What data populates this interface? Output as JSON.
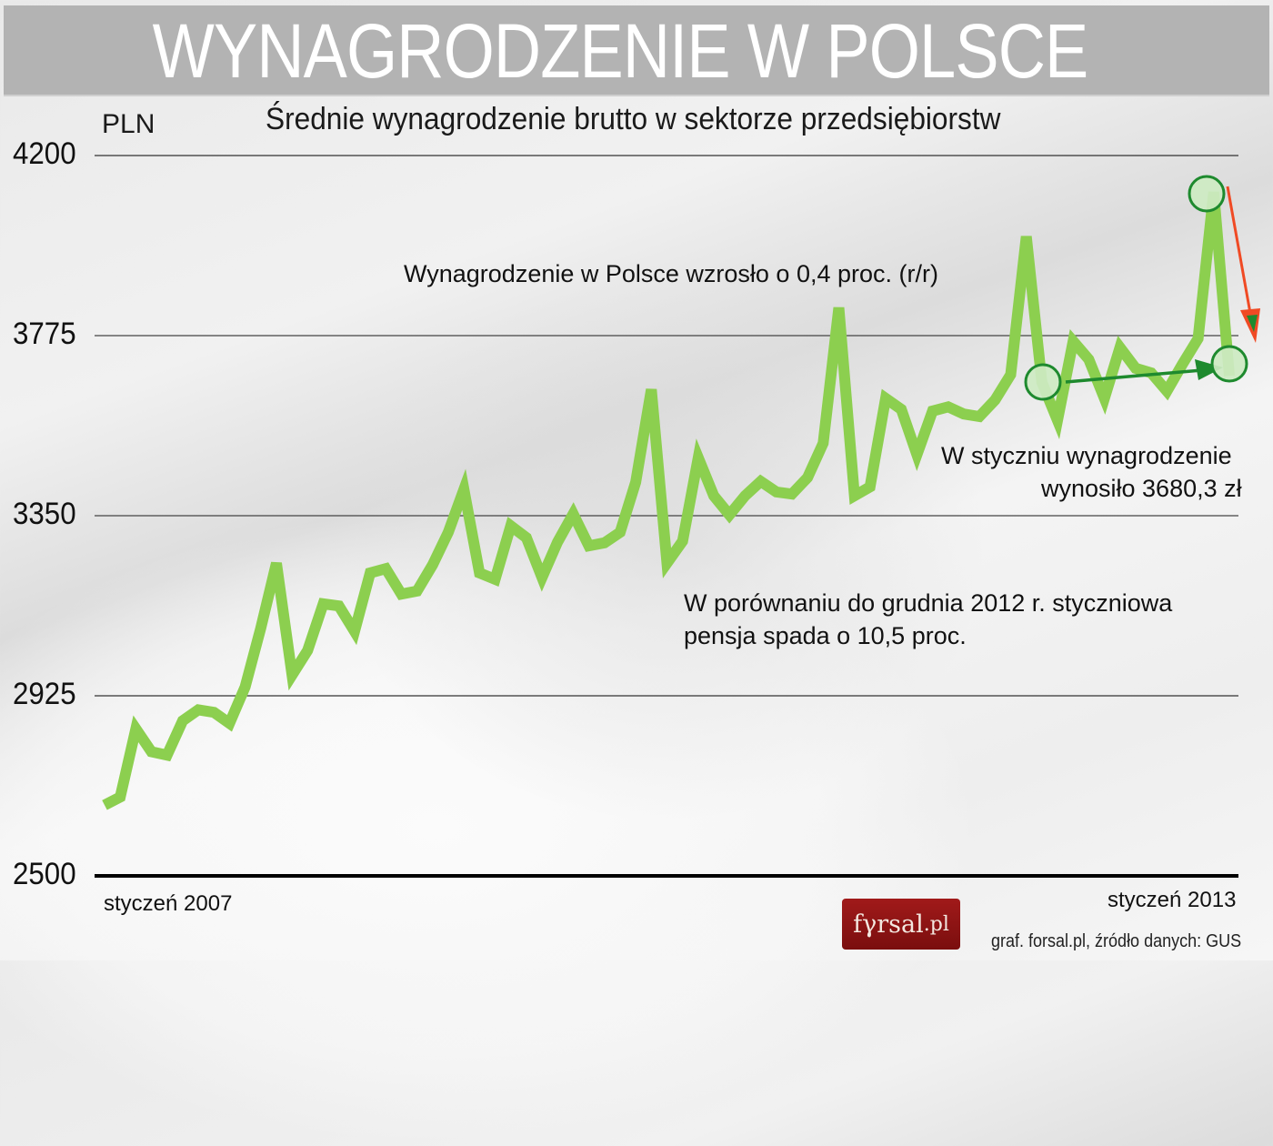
{
  "header": {
    "title": "WYNAGRODZENIE W POLSCE",
    "subtitle": "Średnie wynagrodzenie brutto w sektorze przedsiębiorstw",
    "unit": "PLN"
  },
  "axis": {
    "y_ticks": [
      "4200",
      "3775",
      "3350",
      "2925",
      "2500"
    ],
    "x_start_label": "styczeń 2007",
    "x_end_label": "styczeń 2013"
  },
  "annotations": {
    "growth": "Wynagrodzenie w Polsce wzrosło o 0,4 proc. (r/r)",
    "january_line1": "W styczniu wynagrodzenie",
    "january_line2": "wynosiło 3680,3 zł",
    "compare_line1": "W porównaniu do grudnia 2012 r. styczniowa",
    "compare_line2": "pensja spada o 10,5 proc."
  },
  "footer": {
    "logo_main": "fγrsal",
    "logo_suffix": ".pl",
    "source": "graf. forsal.pl, źródło danych: GUS"
  },
  "colors": {
    "line": "#8ccf4f",
    "marker_fill": "#cdeac2",
    "marker_stroke": "#1e8a2e",
    "arrow_green": "#1e8a2e",
    "arrow_red": "#f04a24",
    "title_bar": "#b3b3b3",
    "logo_bg": "#8f1414"
  },
  "chart_data": {
    "type": "line",
    "title": "Średnie wynagrodzenie brutto w sektorze przedsiębiorstw",
    "ylabel": "PLN",
    "xlabel": "",
    "ylim": [
      2500,
      4200
    ],
    "y_ticks": [
      2500,
      2925,
      3350,
      3775,
      4200
    ],
    "grid": "horizontal",
    "x_range": [
      "styczeń 2007",
      "styczeń 2013"
    ],
    "x": [
      "2007-01",
      "2007-02",
      "2007-03",
      "2007-04",
      "2007-05",
      "2007-06",
      "2007-07",
      "2007-08",
      "2007-09",
      "2007-10",
      "2007-11",
      "2007-12",
      "2008-01",
      "2008-02",
      "2008-03",
      "2008-04",
      "2008-05",
      "2008-06",
      "2008-07",
      "2008-08",
      "2008-09",
      "2008-10",
      "2008-11",
      "2008-12",
      "2009-01",
      "2009-02",
      "2009-03",
      "2009-04",
      "2009-05",
      "2009-06",
      "2009-07",
      "2009-08",
      "2009-09",
      "2009-10",
      "2009-11",
      "2009-12",
      "2010-01",
      "2010-02",
      "2010-03",
      "2010-04",
      "2010-05",
      "2010-06",
      "2010-07",
      "2010-08",
      "2010-09",
      "2010-10",
      "2010-11",
      "2010-12",
      "2011-01",
      "2011-02",
      "2011-03",
      "2011-04",
      "2011-05",
      "2011-06",
      "2011-07",
      "2011-08",
      "2011-09",
      "2011-10",
      "2011-11",
      "2011-12",
      "2012-01",
      "2012-02",
      "2012-03",
      "2012-04",
      "2012-05",
      "2012-06",
      "2012-07",
      "2012-08",
      "2012-09",
      "2012-10",
      "2012-11",
      "2012-12",
      "2013-01"
    ],
    "series": [
      {
        "name": "Średnie wynagrodzenie brutto",
        "values": [
          2667,
          2686,
          2847,
          2793,
          2785,
          2866,
          2892,
          2886,
          2860,
          2946,
          3085,
          3238,
          2974,
          3032,
          3142,
          3137,
          3077,
          3215,
          3225,
          3165,
          3172,
          3234,
          3311,
          3412,
          3215,
          3200,
          3326,
          3298,
          3204,
          3288,
          3354,
          3279,
          3286,
          3311,
          3429,
          3648,
          3238,
          3290,
          3487,
          3397,
          3352,
          3397,
          3431,
          3406,
          3401,
          3440,
          3521,
          3841,
          3397,
          3418,
          3627,
          3601,
          3494,
          3597,
          3607,
          3590,
          3584,
          3623,
          3683,
          4009,
          3665,
          3575,
          3762,
          3719,
          3627,
          3747,
          3698,
          3687,
          3644,
          3708,
          3768,
          4114,
          3680
        ]
      }
    ],
    "annotations": [
      "Wynagrodzenie w Polsce wzrosło o 0,4 proc. (r/r)",
      "W styczniu wynagrodzenie wynosiło 3680,3 zł",
      "W porównaniu do grudnia 2012 r. styczniowa pensja spada o 10,5 proc."
    ],
    "highlighted_points": [
      {
        "x": "2012-01",
        "value": 3665,
        "note": "start of green arrow (year-on-year)"
      },
      {
        "x": "2012-12",
        "value": 4114,
        "note": "start of red arrow (month-on-month drop)"
      },
      {
        "x": "2013-01",
        "value": 3680.3,
        "note": "end of both arrows"
      }
    ]
  }
}
